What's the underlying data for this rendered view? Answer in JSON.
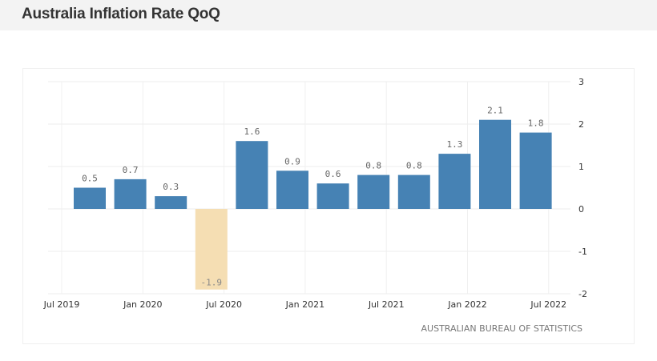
{
  "header": {
    "title": "Australia Inflation Rate QoQ"
  },
  "source": "AUSTRALIAN BUREAU OF STATISTICS",
  "chart_data": {
    "type": "bar",
    "title": "Australia Inflation Rate QoQ",
    "xlabel": "",
    "ylabel": "",
    "categories": [
      "Q3 2019",
      "Q4 2019",
      "Q1 2020",
      "Q2 2020",
      "Q3 2020",
      "Q4 2020",
      "Q1 2021",
      "Q2 2021",
      "Q3 2021",
      "Q4 2021",
      "Q1 2022",
      "Q2 2022"
    ],
    "values": [
      0.5,
      0.7,
      0.3,
      -1.9,
      1.6,
      0.9,
      0.6,
      0.8,
      0.8,
      1.3,
      2.1,
      1.8
    ],
    "data_labels": [
      "0.5",
      "0.7",
      "0.3",
      "-1.9",
      "1.6",
      "0.9",
      "0.6",
      "0.8",
      "0.8",
      "1.3",
      "2.1",
      "1.8"
    ],
    "ylim": [
      -2,
      3
    ],
    "yticks": [
      "3",
      "2",
      "1",
      "0",
      "-1",
      "-2"
    ],
    "xticks": [
      "Jul 2019",
      "Jan 2020",
      "Jul 2020",
      "Jan 2021",
      "Jul 2021",
      "Jan 2022",
      "Jul 2022"
    ],
    "grid": true,
    "colors": {
      "positive": "#4682b4",
      "negative": "#f5deb3"
    }
  }
}
